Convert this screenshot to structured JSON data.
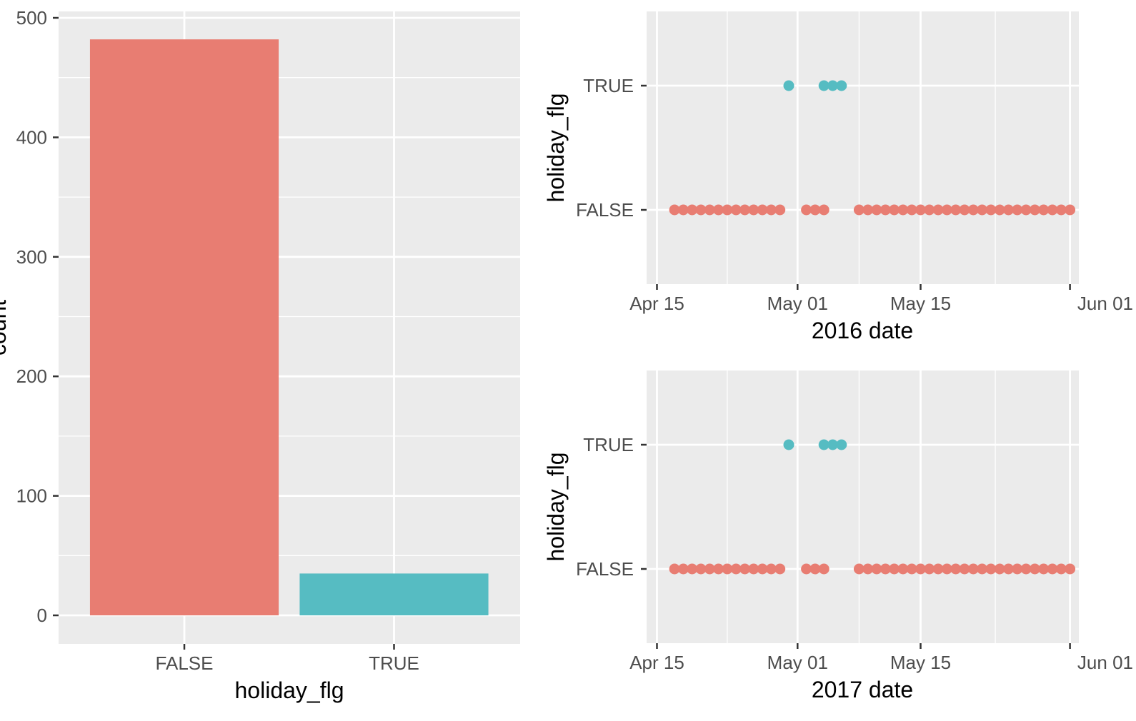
{
  "colors": {
    "panel_bg": "#ebebeb",
    "grid": "#ffffff",
    "tick": "#333333",
    "false_fill": "#e87d72",
    "true_fill": "#56bcc2"
  },
  "chart_data": [
    {
      "type": "bar",
      "categories": [
        "FALSE",
        "TRUE"
      ],
      "values": [
        482,
        35
      ],
      "xlabel": "holiday_flg",
      "ylabel": "count",
      "ylim": [
        -24,
        500
      ],
      "yticks": [
        0,
        100,
        200,
        300,
        400,
        500
      ],
      "grid": true,
      "legend": "none"
    },
    {
      "type": "scatter",
      "xlabel": "2016 date",
      "ylabel": "holiday_flg",
      "x_range_days": [
        "2016-04-14",
        "2016-06-01"
      ],
      "x_ticks": [
        {
          "label": "Apr 15",
          "date": "2016-04-15"
        },
        {
          "label": "May 01",
          "date": "2016-05-01"
        },
        {
          "label": "May 15",
          "date": "2016-05-15"
        },
        {
          "label": "Jun 01",
          "date": "2016-06-01"
        }
      ],
      "y_categories": [
        "FALSE",
        "TRUE"
      ],
      "true_dates": [
        "2016-04-29",
        "2016-05-03",
        "2016-05-04",
        "2016-05-05"
      ],
      "false_dates": "2016-04-16 through 2016-05-31 except holidays and 2016-04-30, 2016-05-06, 2016-05-07, 2016-05-08"
    },
    {
      "type": "scatter",
      "xlabel": "2017 date",
      "ylabel": "holiday_flg",
      "x_range_days": [
        "2017-04-14",
        "2017-06-01"
      ],
      "x_ticks": [
        {
          "label": "Apr 15",
          "date": "2017-04-15"
        },
        {
          "label": "May 01",
          "date": "2017-05-01"
        },
        {
          "label": "May 15",
          "date": "2017-05-15"
        },
        {
          "label": "Jun 01",
          "date": "2017-06-01"
        }
      ],
      "y_categories": [
        "FALSE",
        "TRUE"
      ],
      "true_dates": [
        "2017-04-29",
        "2017-05-03",
        "2017-05-04",
        "2017-05-05"
      ],
      "false_dates": "2017-04-16 through 2017-05-31 except holidays and 2017-04-30, 2017-05-06, 2017-05-07, 2017-05-08"
    }
  ],
  "points": {
    "true_offsets": [
      15,
      19,
      20,
      21
    ],
    "false_offsets": [
      2,
      3,
      4,
      5,
      6,
      7,
      8,
      9,
      10,
      11,
      12,
      13,
      14,
      17,
      18,
      19,
      23,
      24,
      25,
      26,
      27,
      28,
      29,
      30,
      31,
      32,
      33,
      34,
      35,
      36,
      37,
      38,
      39,
      40,
      41,
      42,
      43,
      44,
      45,
      46,
      47
    ]
  }
}
